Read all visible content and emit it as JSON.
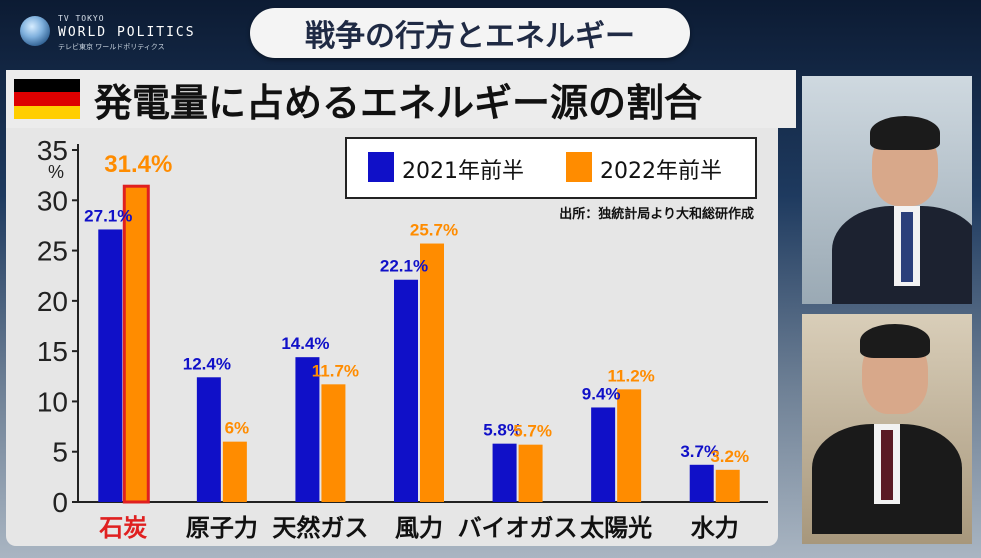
{
  "logo": {
    "line1": "TV TOKYO",
    "line2": "WORLD POLITICS",
    "line3": "テレビ東京 ワールドポリティクス"
  },
  "banner": {
    "text": "戦争の行方とエネルギー"
  },
  "title": "発電量に占めるエネルギー源の割合",
  "colors": {
    "series_2021": "#1010c8",
    "series_2022": "#ff8c00",
    "highlight": "#e02020",
    "panel": "#e6e6e6"
  },
  "chart_data": {
    "type": "bar",
    "title": "発電量に占めるエネルギー源の割合",
    "ylabel": "%",
    "ylim": [
      0,
      35
    ],
    "yticks": [
      0,
      5,
      10,
      15,
      20,
      25,
      30,
      35
    ],
    "grid": false,
    "legend_position": "top-right",
    "source_note": "出所：独統計局より大和総研作成",
    "categories": [
      "石炭",
      "原子力",
      "天然ガス",
      "風力",
      "バイオガス",
      "太陽光",
      "水力"
    ],
    "highlight_category": "石炭",
    "series": [
      {
        "name": "2021年前半",
        "values": [
          27.1,
          12.4,
          14.4,
          22.1,
          5.8,
          9.4,
          3.7
        ],
        "labels": [
          "27.1%",
          "12.4%",
          "14.4%",
          "22.1%",
          "5.8%",
          "9.4%",
          "3.7%"
        ]
      },
      {
        "name": "2022年前半",
        "values": [
          31.4,
          6,
          11.7,
          25.7,
          5.7,
          11.2,
          3.2
        ],
        "labels": [
          "31.4%",
          "6%",
          "11.7%",
          "25.7%",
          "5.7%",
          "11.2%",
          "3.2%"
        ]
      }
    ]
  }
}
